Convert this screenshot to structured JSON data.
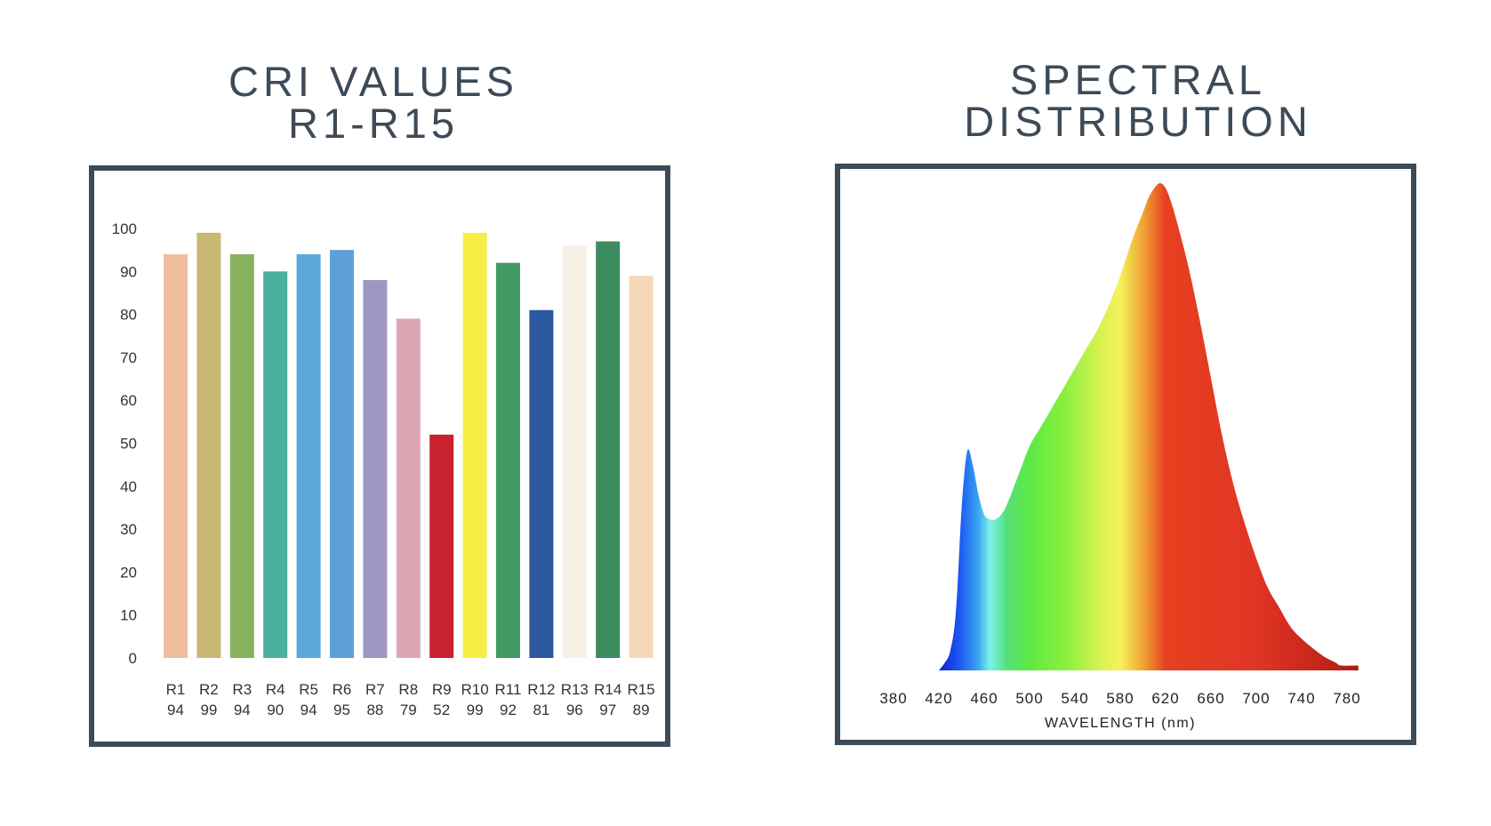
{
  "left_title": [
    "CRI VALUES",
    "R1-R15"
  ],
  "right_title": [
    "SPECTRAL",
    "DISTRIBUTION"
  ],
  "chart_data": [
    {
      "type": "bar",
      "title": "CRI VALUES R1-R15",
      "categories": [
        "R1",
        "R2",
        "R3",
        "R4",
        "R5",
        "R6",
        "R7",
        "R8",
        "R9",
        "R10",
        "R11",
        "R12",
        "R13",
        "R14",
        "R15"
      ],
      "values": [
        94,
        99,
        94,
        90,
        94,
        95,
        88,
        79,
        52,
        99,
        92,
        81,
        96,
        97,
        89
      ],
      "value_labels": [
        "94",
        "99",
        "94",
        "90",
        "94",
        "95",
        "88",
        "79",
        "52",
        "99",
        "92",
        "81",
        "96",
        "97",
        "89"
      ],
      "bar_colors": [
        "#f0bca0",
        "#c8b874",
        "#86b35c",
        "#4aaf9f",
        "#5aa9d8",
        "#5e9fd8",
        "#9f97c1",
        "#dea6b5",
        "#c8222e",
        "#f6ee44",
        "#3f9a63",
        "#2c589f",
        "#f6f0e6",
        "#3b8c5e",
        "#f5d9b6"
      ],
      "y_ticks": [
        "0",
        "10",
        "20",
        "30",
        "40",
        "50",
        "60",
        "70",
        "80",
        "90",
        "100"
      ],
      "ylim": [
        0,
        100
      ],
      "grid": false,
      "legend": "none"
    },
    {
      "type": "area",
      "title": "SPECTRAL DISTRIBUTION",
      "xlabel": "WAVELENGTH (nm)",
      "x_ticks": [
        "380",
        "420",
        "460",
        "500",
        "540",
        "580",
        "620",
        "660",
        "700",
        "740",
        "780"
      ],
      "xlim": [
        380,
        780
      ],
      "ylim": [
        0,
        1
      ],
      "x": [
        420,
        425,
        430,
        435,
        440,
        445,
        450,
        455,
        460,
        465,
        470,
        475,
        480,
        490,
        500,
        510,
        520,
        530,
        540,
        550,
        560,
        570,
        580,
        590,
        600,
        605,
        610,
        615,
        620,
        625,
        630,
        640,
        650,
        660,
        670,
        680,
        690,
        700,
        710,
        720,
        730,
        740,
        750,
        760,
        770,
        775,
        790
      ],
      "y": [
        0,
        0.015,
        0.04,
        0.12,
        0.33,
        0.45,
        0.42,
        0.36,
        0.32,
        0.31,
        0.31,
        0.32,
        0.34,
        0.4,
        0.46,
        0.5,
        0.54,
        0.58,
        0.62,
        0.66,
        0.7,
        0.75,
        0.81,
        0.88,
        0.94,
        0.97,
        0.99,
        1.0,
        0.99,
        0.96,
        0.92,
        0.83,
        0.72,
        0.6,
        0.48,
        0.38,
        0.3,
        0.23,
        0.17,
        0.13,
        0.09,
        0.065,
        0.045,
        0.028,
        0.016,
        0.01,
        0.01
      ],
      "gradient": [
        {
          "nm": 420,
          "color": "#0a22d8"
        },
        {
          "nm": 440,
          "color": "#1f5ef2"
        },
        {
          "nm": 455,
          "color": "#3aa8f0"
        },
        {
          "nm": 465,
          "color": "#7ff0ea"
        },
        {
          "nm": 480,
          "color": "#54e07a"
        },
        {
          "nm": 500,
          "color": "#5fe843"
        },
        {
          "nm": 530,
          "color": "#86f040"
        },
        {
          "nm": 560,
          "color": "#d3f250"
        },
        {
          "nm": 580,
          "color": "#f4f25a"
        },
        {
          "nm": 600,
          "color": "#f0a434"
        },
        {
          "nm": 620,
          "color": "#e64020"
        },
        {
          "nm": 700,
          "color": "#e03525"
        },
        {
          "nm": 750,
          "color": "#c8271c"
        },
        {
          "nm": 790,
          "color": "#a81e14"
        }
      ],
      "grid": false,
      "legend": "none"
    }
  ]
}
